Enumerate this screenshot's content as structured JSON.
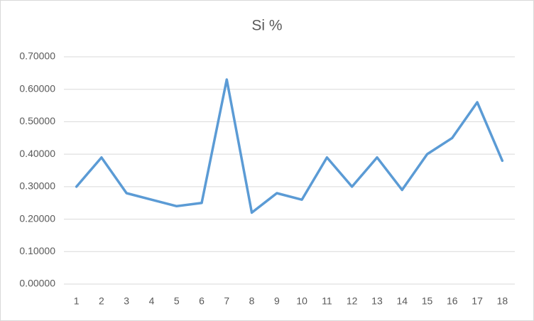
{
  "chart_data": {
    "type": "line",
    "title": "Si %",
    "categories": [
      "1",
      "2",
      "3",
      "4",
      "5",
      "6",
      "7",
      "8",
      "9",
      "10",
      "11",
      "12",
      "13",
      "14",
      "15",
      "16",
      "17",
      "18"
    ],
    "values": [
      0.3,
      0.39,
      0.28,
      0.26,
      0.24,
      0.25,
      0.63,
      0.22,
      0.28,
      0.26,
      0.39,
      0.3,
      0.39,
      0.29,
      0.4,
      0.45,
      0.56,
      0.38
    ],
    "color": "#5b9bd5",
    "ylim": [
      0,
      0.7
    ],
    "yticks": [
      {
        "value": 0,
        "label": "0.00000"
      },
      {
        "value": 0.1,
        "label": "0.10000"
      },
      {
        "value": 0.2,
        "label": "0.20000"
      },
      {
        "value": 0.3,
        "label": "0.30000"
      },
      {
        "value": 0.4,
        "label": "0.40000"
      },
      {
        "value": 0.5,
        "label": "0.50000"
      },
      {
        "value": 0.6,
        "label": "0.60000"
      },
      {
        "value": 0.7,
        "label": "0.70000"
      }
    ],
    "grid": true
  }
}
